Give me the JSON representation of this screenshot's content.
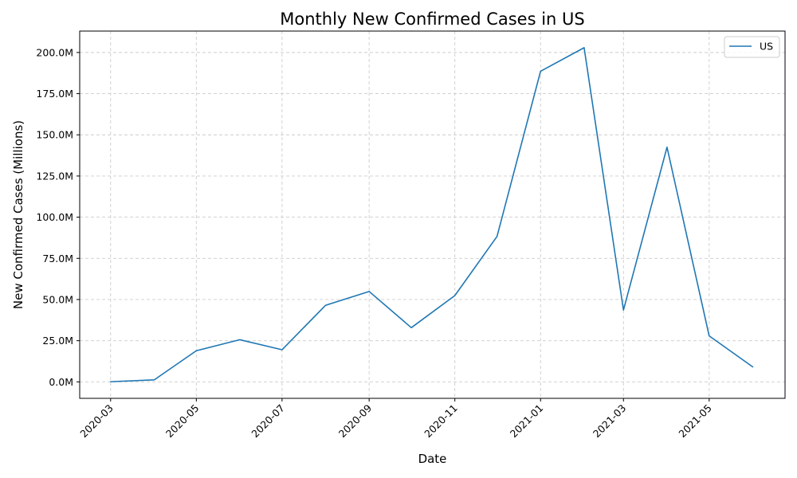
{
  "chart_data": {
    "type": "line",
    "title": "Monthly New Confirmed Cases in US",
    "xlabel": "Date",
    "ylabel": "New Confirmed Cases (Millions)",
    "x": [
      "2020-03",
      "2020-04",
      "2020-05",
      "2020-06",
      "2020-07",
      "2020-08",
      "2020-09",
      "2020-10",
      "2020-11",
      "2020-12",
      "2021-01",
      "2021-02",
      "2021-03",
      "2021-04",
      "2021-05",
      "2021-06"
    ],
    "series": [
      {
        "name": "US",
        "color": "#1f77b4",
        "values": [
          0.1,
          1.2,
          18.9,
          25.6,
          19.5,
          46.5,
          54.9,
          32.9,
          52.4,
          88.3,
          188.6,
          202.9,
          43.6,
          142.5,
          27.9,
          9.1
        ]
      }
    ],
    "xticks": [
      "2020-03",
      "2020-05",
      "2020-07",
      "2020-09",
      "2020-11",
      "2021-01",
      "2021-03",
      "2021-05"
    ],
    "yticks": [
      0,
      25,
      50,
      75,
      100,
      125,
      150,
      175,
      200
    ],
    "ytick_labels": [
      "0.0M",
      "25.0M",
      "50.0M",
      "75.0M",
      "100.0M",
      "125.0M",
      "150.0M",
      "175.0M",
      "200.0M"
    ],
    "ylim": [
      -10,
      213
    ],
    "xlim": [
      "2020-02-08",
      "2021-06-24"
    ],
    "grid": true,
    "legend": "top-right"
  }
}
